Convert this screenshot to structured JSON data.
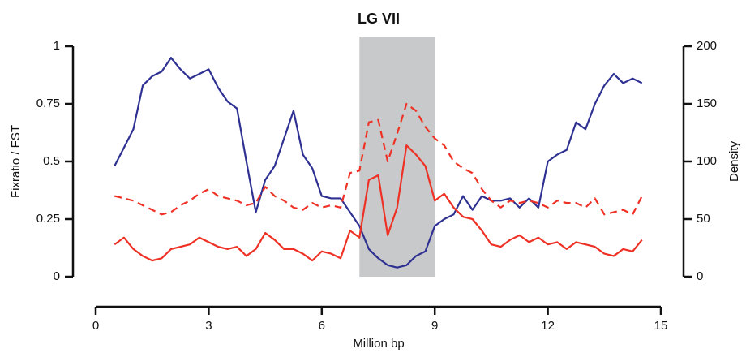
{
  "chart_data": {
    "type": "line",
    "title": "LG VII",
    "xlabel": "Million bp",
    "ylabel": "Fixratio / FST",
    "y2label": "Density",
    "xlim": [
      0,
      15
    ],
    "xticks": [
      0,
      3,
      6,
      9,
      12,
      15
    ],
    "ylim": [
      0,
      1
    ],
    "yticks": [
      0,
      0.25,
      0.5,
      0.75,
      1
    ],
    "y2lim": [
      0,
      200
    ],
    "y2ticks": [
      0,
      50,
      100,
      150,
      200
    ],
    "highlight": [
      7,
      9
    ],
    "highlight_color": "#c8c9ca",
    "grid": false,
    "x": [
      0.5,
      0.75,
      1,
      1.25,
      1.5,
      1.75,
      2,
      2.25,
      2.5,
      2.75,
      3,
      3.25,
      3.5,
      3.75,
      4,
      4.25,
      4.5,
      4.75,
      5,
      5.25,
      5.5,
      5.75,
      6,
      6.25,
      6.5,
      6.75,
      7,
      7.25,
      7.5,
      7.75,
      8,
      8.25,
      8.5,
      8.75,
      9,
      9.25,
      9.5,
      9.75,
      10,
      10.25,
      10.5,
      10.75,
      11,
      11.25,
      11.5,
      11.75,
      12,
      12.25,
      12.5,
      12.75,
      13,
      13.25,
      13.5,
      13.75,
      14,
      14.25,
      14.5
    ],
    "series": [
      {
        "color": "#2e3192",
        "axis": "y2",
        "dashed": false,
        "values": [
          96,
          112,
          128,
          166,
          174,
          178,
          190,
          180,
          172,
          176,
          180,
          164,
          152,
          146,
          100,
          56,
          84,
          96,
          120,
          144,
          106,
          94,
          70,
          68,
          68,
          56,
          44,
          24,
          16,
          10,
          8,
          10,
          18,
          22,
          44,
          50,
          54,
          70,
          58,
          70,
          66,
          66,
          68,
          60,
          68,
          60,
          100,
          106,
          110,
          134,
          128,
          150,
          166,
          176,
          168,
          172,
          168
        ]
      },
      {
        "color": "#ee3124",
        "axis": "y",
        "dashed": false,
        "values": [
          0.14,
          0.17,
          0.12,
          0.09,
          0.07,
          0.08,
          0.12,
          0.13,
          0.14,
          0.17,
          0.15,
          0.13,
          0.12,
          0.13,
          0.09,
          0.12,
          0.19,
          0.16,
          0.12,
          0.12,
          0.1,
          0.07,
          0.11,
          0.1,
          0.08,
          0.2,
          0.17,
          0.42,
          0.44,
          0.18,
          0.3,
          0.57,
          0.53,
          0.48,
          0.33,
          0.36,
          0.3,
          0.26,
          0.25,
          0.2,
          0.14,
          0.13,
          0.16,
          0.18,
          0.15,
          0.17,
          0.14,
          0.15,
          0.12,
          0.15,
          0.14,
          0.13,
          0.1,
          0.09,
          0.12,
          0.11,
          0.16
        ]
      },
      {
        "color": "#ee3124",
        "axis": "y",
        "dashed": true,
        "values": [
          0.35,
          0.34,
          0.33,
          0.31,
          0.29,
          0.27,
          0.28,
          0.31,
          0.33,
          0.36,
          0.38,
          0.35,
          0.34,
          0.33,
          0.31,
          0.32,
          0.39,
          0.35,
          0.33,
          0.3,
          0.29,
          0.32,
          0.3,
          0.31,
          0.3,
          0.45,
          0.46,
          0.67,
          0.68,
          0.5,
          0.62,
          0.75,
          0.72,
          0.65,
          0.6,
          0.57,
          0.5,
          0.47,
          0.45,
          0.38,
          0.33,
          0.3,
          0.33,
          0.32,
          0.33,
          0.32,
          0.3,
          0.33,
          0.32,
          0.32,
          0.3,
          0.34,
          0.27,
          0.28,
          0.29,
          0.27,
          0.35
        ]
      }
    ]
  }
}
